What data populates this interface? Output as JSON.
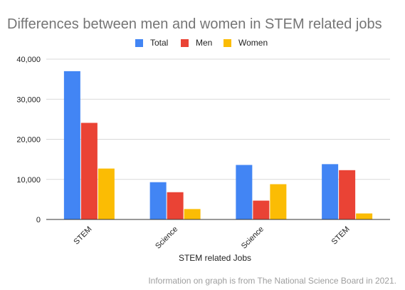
{
  "caption": "Information on graph is from The National Science Board in 2021.",
  "chart_data": {
    "type": "bar",
    "title": "Differences between men and women in STEM related jobs",
    "xlabel": "STEM related Jobs",
    "ylabel": "",
    "categories": [
      "STEM",
      "Science",
      "Science",
      "STEM"
    ],
    "ylim": [
      0,
      40000
    ],
    "yticks": [
      0,
      10000,
      20000,
      30000,
      40000
    ],
    "ytick_labels": [
      "0",
      "10,000",
      "20,000",
      "30,000",
      "40,000"
    ],
    "grid": true,
    "legend_position": "top",
    "series": [
      {
        "name": "Total",
        "color": "#4285f4",
        "values": [
          37000,
          9300,
          13600,
          13800
        ]
      },
      {
        "name": "Men",
        "color": "#ea4335",
        "values": [
          24100,
          6800,
          4700,
          12300
        ]
      },
      {
        "name": "Women",
        "color": "#fbbc04",
        "values": [
          12700,
          2600,
          8800,
          1500
        ]
      }
    ]
  }
}
